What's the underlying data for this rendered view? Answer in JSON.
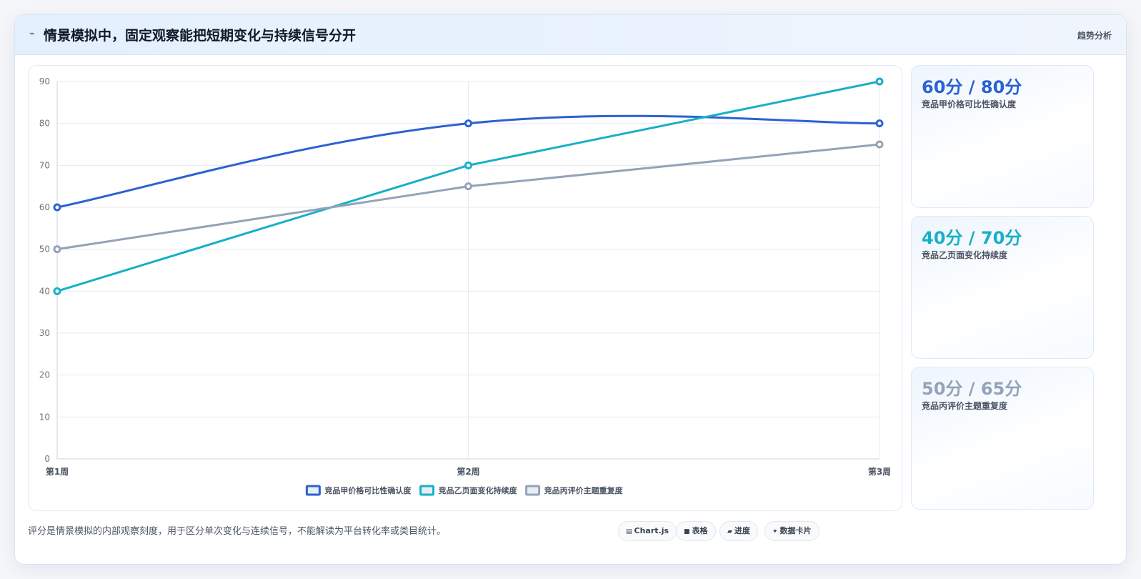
{
  "header": {
    "icon": "sparkle-icon",
    "title": "情景模拟中，固定观察能把短期变化与持续信号分开",
    "tag": "趋势分析"
  },
  "chart_data": {
    "type": "line",
    "categories": [
      "第1周",
      "第2周",
      "第3周"
    ],
    "ylim": [
      0,
      90
    ],
    "yticks": [
      0,
      10,
      20,
      30,
      40,
      50,
      60,
      70,
      80,
      90
    ],
    "grid": true,
    "legend": "bottom",
    "series": [
      {
        "name": "竞品甲价格可比性确认度",
        "values": [
          60,
          80,
          80
        ],
        "color": "#2b62d1",
        "smooth": true
      },
      {
        "name": "竞品乙页面变化持续度",
        "values": [
          40,
          70,
          90
        ],
        "color": "#17b0c6",
        "smooth": false
      },
      {
        "name": "竞品丙评价主题重复度",
        "values": [
          50,
          65,
          75
        ],
        "color": "#94a3b8",
        "smooth": false
      }
    ]
  },
  "stats": [
    {
      "value": "60分 / 80分",
      "label": "竞品甲价格可比性确认度",
      "color": "#2b62d1"
    },
    {
      "value": "40分 / 70分",
      "label": "竞品乙页面变化持续度",
      "color": "#17b0c6"
    },
    {
      "value": "50分 / 65分",
      "label": "竞品丙评价主题重复度",
      "color": "#94a3b8"
    }
  ],
  "footer": {
    "note": "评分是情景模拟的内部观察刻度，用于区分单次变化与连续信号，不能解读为平台转化率或类目统计。"
  },
  "chips": [
    {
      "icon": "chart-icon",
      "glyph": "▤",
      "label": "Chart.js"
    },
    {
      "icon": "table-icon",
      "glyph": "■",
      "label": "表格"
    },
    {
      "icon": "progress-icon",
      "glyph": "▰",
      "label": "进度"
    },
    {
      "icon": "data-card-icon",
      "glyph": "✦",
      "label": "数据卡片"
    }
  ]
}
